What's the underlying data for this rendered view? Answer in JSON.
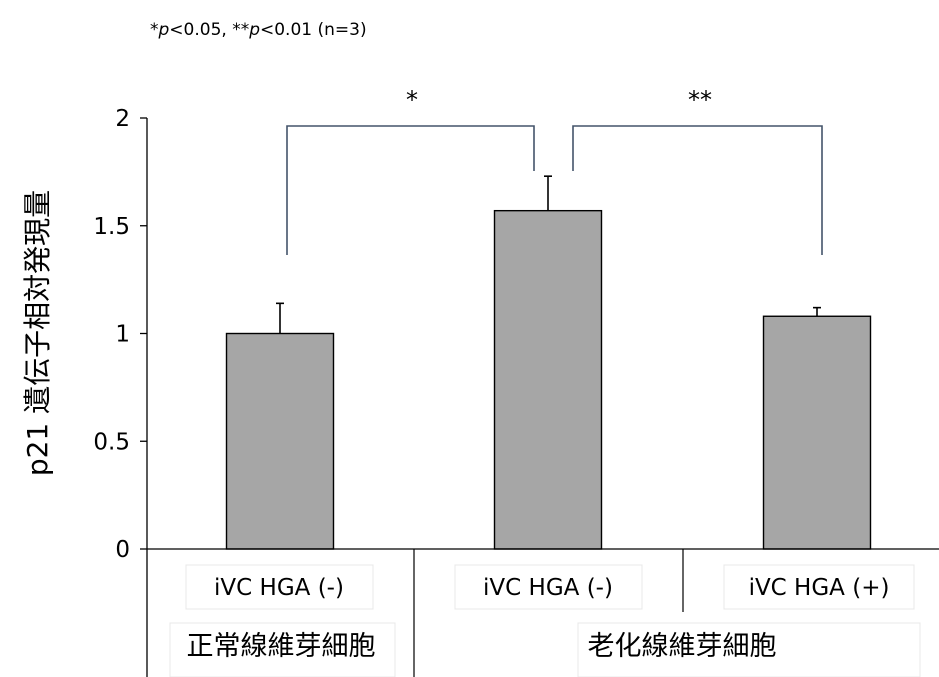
{
  "chart_data": {
    "type": "bar",
    "note": "*p<0.05, **p<0.01 (n=3)",
    "ylabel": "p21 遺伝子相対発現量",
    "ylim": [
      0,
      2
    ],
    "yticks": [
      "0",
      "0.5",
      "1",
      "1.5",
      "2"
    ],
    "categories": [
      "iVC HGA (-)",
      "iVC HGA (-)",
      "iVC HGA (+)"
    ],
    "groups": [
      {
        "label": "正常線維芽細胞",
        "categories": [
          0
        ]
      },
      {
        "label": "老化線維芽細胞",
        "categories": [
          1,
          2
        ]
      }
    ],
    "values": [
      1.0,
      1.57,
      1.08
    ],
    "errors": [
      0.14,
      0.16,
      0.04
    ],
    "significance": [
      {
        "from": 0,
        "to": 1,
        "label": "*"
      },
      {
        "from": 1,
        "to": 2,
        "label": "**"
      }
    ],
    "bar_color": "#a6a6a6",
    "bracket_color": "#44546a",
    "grid": false
  }
}
